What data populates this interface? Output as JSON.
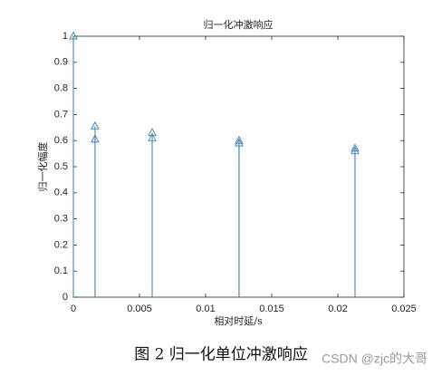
{
  "chart_data": {
    "type": "stem",
    "title": "归一化冲激响应",
    "x_label": "相对时延/s",
    "y_label": "归一化幅度",
    "x": [
      0,
      0.00164,
      0.00164,
      0.00596,
      0.00596,
      0.01253,
      0.01253,
      0.0213,
      0.0213
    ],
    "values": [
      1,
      0.655,
      0.605,
      0.63,
      0.61,
      0.6,
      0.59,
      0.57,
      0.56
    ],
    "color": "#3a7fb0",
    "xlim": [
      0,
      0.025
    ],
    "xticks": [
      0,
      0.005,
      0.01,
      0.015,
      0.02,
      0.025
    ],
    "ylim": [
      0,
      1
    ],
    "yticks": [
      0,
      0.1,
      0.2,
      0.3,
      0.4,
      0.5,
      0.6,
      0.7,
      0.8,
      0.9,
      1
    ],
    "grid": false,
    "caption": "图 2  归一化单位冲激响应",
    "watermark": "CSDN @zjc的大哥"
  }
}
